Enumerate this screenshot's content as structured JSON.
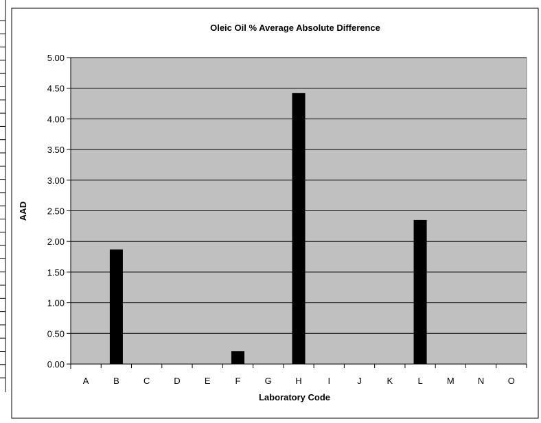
{
  "chart_data": {
    "type": "bar",
    "title": "Oleic Oil % Average Absolute Difference",
    "xlabel": "Laboratory Code",
    "ylabel": "AAD",
    "categories": [
      "A",
      "B",
      "C",
      "D",
      "E",
      "F",
      "G",
      "H",
      "I",
      "J",
      "K",
      "L",
      "M",
      "N",
      "O"
    ],
    "values": [
      0,
      1.87,
      0,
      0,
      0,
      0.21,
      0,
      4.42,
      0,
      0,
      0,
      2.35,
      0,
      0,
      0
    ],
    "ylim": [
      0,
      5
    ],
    "yticks": [
      "0.00",
      "0.50",
      "1.00",
      "1.50",
      "2.00",
      "2.50",
      "3.00",
      "3.50",
      "4.00",
      "4.50",
      "5.00"
    ],
    "grid": true,
    "legend": "none",
    "colors": {
      "bar": "#000000",
      "plot_background": "#c0c0c0",
      "gridline": "#000000",
      "chart_background": "#ffffff"
    }
  }
}
